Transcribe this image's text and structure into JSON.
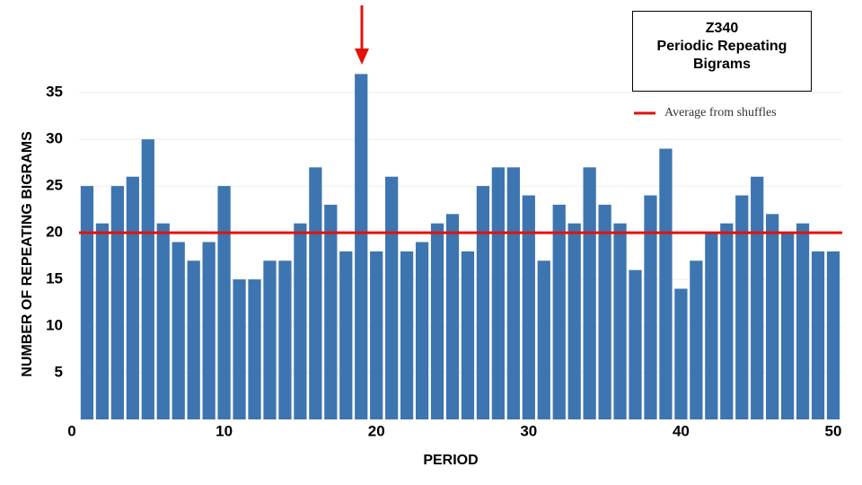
{
  "chart_data": {
    "type": "bar",
    "title": "Z340",
    "subtitle": "Periodic Repeating Bigrams",
    "x_label": "PERIOD",
    "y_label": "NUMBER OF REPEATING BIGRAMS",
    "x": [
      1,
      2,
      3,
      4,
      5,
      6,
      7,
      8,
      9,
      10,
      11,
      12,
      13,
      14,
      15,
      16,
      17,
      18,
      19,
      20,
      21,
      22,
      23,
      24,
      25,
      26,
      27,
      28,
      29,
      30,
      31,
      32,
      33,
      34,
      35,
      36,
      37,
      38,
      39,
      40,
      41,
      42,
      43,
      44,
      45,
      46,
      47,
      48,
      49,
      50
    ],
    "values": [
      25,
      21,
      25,
      26,
      30,
      21,
      19,
      17,
      19,
      25,
      15,
      15,
      17,
      17,
      21,
      27,
      23,
      18,
      37,
      18,
      26,
      18,
      19,
      21,
      22,
      18,
      25,
      27,
      27,
      24,
      17,
      23,
      21,
      27,
      23,
      21,
      16,
      24,
      29,
      14,
      17,
      20,
      21,
      24,
      26,
      22,
      20,
      21,
      18,
      18
    ],
    "color": "#3d75b0",
    "xlim": [
      0,
      50
    ],
    "xticks": [
      0,
      10,
      20,
      30,
      40,
      50
    ],
    "ylim": [
      0,
      38
    ],
    "yticks": [
      5,
      10,
      15,
      20,
      25,
      30,
      35
    ],
    "grid": true,
    "reference_line": {
      "name": "Average from shuffles",
      "value": 20,
      "color": "#e3120b"
    }
  }
}
